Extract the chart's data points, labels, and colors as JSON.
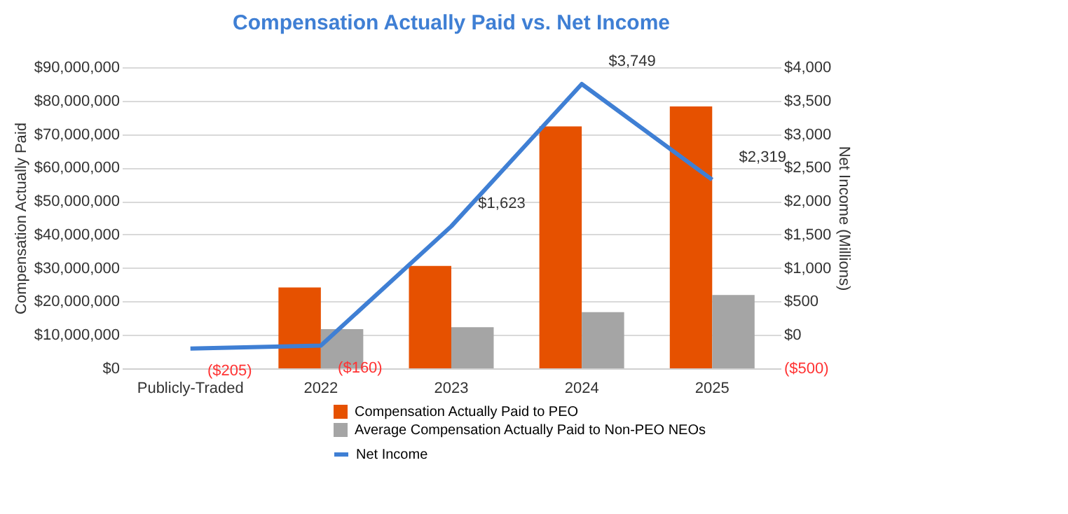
{
  "chart_data": {
    "type": "bar",
    "title": "Compensation Actually Paid vs. Net Income",
    "ylabel": "Compensation Actually Paid",
    "y2label": "Net Income (Millions)",
    "categories": [
      "Publicly-Traded",
      "2022",
      "2023",
      "2024",
      "2025"
    ],
    "series": [
      {
        "name": "Compensation Actually Paid to PEO",
        "color": "#e65100",
        "values": [
          null,
          24200000,
          30600000,
          72300000,
          78300000
        ]
      },
      {
        "name": "Average Compensation Actually Paid to Non-PEO NEOs",
        "color": "#a5a5a5",
        "values": [
          null,
          11700000,
          12300000,
          16800000,
          21900000
        ]
      },
      {
        "name": "Net Income",
        "type": "line",
        "axis": "y2",
        "color": "#3f7fd4",
        "values": [
          -205,
          -160,
          1623,
          3749,
          2319
        ],
        "value_labels": [
          "($205)",
          "($160)",
          "$1,623",
          "$3,749",
          "$2,319"
        ]
      }
    ],
    "ylim": [
      0,
      90000000
    ],
    "yticks": [
      {
        "value": 0,
        "label": "$0"
      },
      {
        "value": 10000000,
        "label": "$10,000,000"
      },
      {
        "value": 20000000,
        "label": "$20,000,000"
      },
      {
        "value": 30000000,
        "label": "$30,000,000"
      },
      {
        "value": 40000000,
        "label": "$40,000,000"
      },
      {
        "value": 50000000,
        "label": "$50,000,000"
      },
      {
        "value": 60000000,
        "label": "$60,000,000"
      },
      {
        "value": 70000000,
        "label": "$70,000,000"
      },
      {
        "value": 80000000,
        "label": "$80,000,000"
      },
      {
        "value": 90000000,
        "label": "$90,000,000"
      }
    ],
    "y2lim": [
      -500,
      4000
    ],
    "y2ticks": [
      {
        "value": -500,
        "label": "($500)"
      },
      {
        "value": 0,
        "label": "$0"
      },
      {
        "value": 500,
        "label": "$500"
      },
      {
        "value": 1000,
        "label": "$1,000"
      },
      {
        "value": 1500,
        "label": "$1,500"
      },
      {
        "value": 2000,
        "label": "$2,000"
      },
      {
        "value": 2500,
        "label": "$2,500"
      },
      {
        "value": 3000,
        "label": "$3,000"
      },
      {
        "value": 3500,
        "label": "$3,500"
      },
      {
        "value": 4000,
        "label": "$4,000"
      }
    ],
    "grid": "y",
    "legend": "bottom"
  }
}
